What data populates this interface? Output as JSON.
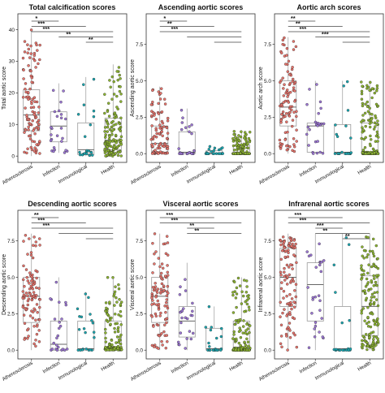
{
  "colors": {
    "Atherosclerosis": "#e8746c",
    "Infection": "#9d77d6",
    "Immunological": "#1aa6b0",
    "Health": "#8db531"
  },
  "chart_data": [
    {
      "type": "box",
      "title": "Total calcification scores",
      "ylabel": "Total aortic score",
      "ylim": [
        -2,
        45
      ],
      "yticks": [
        "0",
        "10",
        "20",
        "30",
        "40"
      ],
      "ytick_values": [
        0,
        10,
        20,
        30,
        40
      ],
      "categories": [
        "Atherosclerosis",
        "Infection",
        "Immunological",
        "Health"
      ],
      "boxes": [
        {
          "min": 0,
          "q1": 8,
          "median": 13,
          "q3": 21,
          "max": 40
        },
        {
          "min": 1,
          "q1": 4.5,
          "median": 9.5,
          "q3": 14,
          "max": 23
        },
        {
          "min": 0,
          "q1": 0.5,
          "median": 2,
          "q3": 10.5,
          "max": 25
        },
        {
          "min": 0,
          "q1": 2,
          "median": 5,
          "q3": 12,
          "max": 29
        }
      ],
      "point_counts": [
        110,
        25,
        22,
        140
      ],
      "comparisons": [
        {
          "from": 0,
          "to": 1,
          "label": "*"
        },
        {
          "from": 0,
          "to": 2,
          "label": "***"
        },
        {
          "from": 0,
          "to": 3,
          "label": "***"
        },
        {
          "from": 1,
          "to": 3,
          "label": "**"
        },
        {
          "from": 2,
          "to": 3,
          "label": "**"
        }
      ]
    },
    {
      "type": "box",
      "title": "Ascending aortic scores",
      "ylabel": "Ascending aortic score",
      "ylim": [
        -0.6,
        9.6
      ],
      "yticks": [
        "0.0",
        "2.5",
        "5.0",
        "7.5"
      ],
      "ytick_values": [
        0,
        2.5,
        5,
        7.5
      ],
      "categories": [
        "Atherosclerosis",
        "Infection",
        "Immunological",
        "Health"
      ],
      "boxes": [
        {
          "min": 0,
          "q1": 0.1,
          "median": 0.7,
          "q3": 1.9,
          "max": 4.6
        },
        {
          "min": 0,
          "q1": 0,
          "median": 0.1,
          "q3": 1.5,
          "max": 3.1
        },
        {
          "min": 0,
          "q1": 0,
          "median": 0,
          "q3": 0.2,
          "max": 0.5
        },
        {
          "min": 0,
          "q1": 0,
          "median": 0,
          "q3": 0.6,
          "max": 1.6
        }
      ],
      "point_counts": [
        95,
        25,
        22,
        140
      ],
      "comparisons": [
        {
          "from": 0,
          "to": 1,
          "label": "*"
        },
        {
          "from": 0,
          "to": 2,
          "label": "**"
        },
        {
          "from": 0,
          "to": 3,
          "label": "***"
        },
        {
          "from": 1,
          "to": 3,
          "label": ""
        },
        {
          "from": 2,
          "to": 3,
          "label": ""
        }
      ]
    },
    {
      "type": "box",
      "title": "Aortic arch scores",
      "ylabel": "Aortic arch score",
      "ylim": [
        -0.6,
        9.6
      ],
      "yticks": [
        "0.0",
        "2.5",
        "5.0",
        "7.5"
      ],
      "ytick_values": [
        0,
        2.5,
        5,
        7.5
      ],
      "categories": [
        "Atherosclerosis",
        "Infection",
        "Immunological",
        "Health"
      ],
      "boxes": [
        {
          "min": 0,
          "q1": 1.9,
          "median": 3.2,
          "q3": 5,
          "max": 8
        },
        {
          "min": 0,
          "q1": 0.1,
          "median": 1.9,
          "q3": 2.1,
          "max": 5
        },
        {
          "min": 0,
          "q1": 0,
          "median": 0.1,
          "q3": 2,
          "max": 5
        },
        {
          "min": 0,
          "q1": 0,
          "median": 0.1,
          "q3": 2.1,
          "max": 5
        }
      ],
      "point_counts": [
        100,
        25,
        22,
        140
      ],
      "comparisons": [
        {
          "from": 0,
          "to": 1,
          "label": "**"
        },
        {
          "from": 0,
          "to": 2,
          "label": "**"
        },
        {
          "from": 0,
          "to": 3,
          "label": "***"
        },
        {
          "from": 1,
          "to": 3,
          "label": "***"
        },
        {
          "from": 2,
          "to": 3,
          "label": ""
        }
      ]
    },
    {
      "type": "box",
      "title": "Descending aortic scores",
      "ylabel": "Descending aortic score",
      "ylim": [
        -0.6,
        9.6
      ],
      "yticks": [
        "0.0",
        "2.5",
        "5.0",
        "7.5"
      ],
      "ytick_values": [
        0,
        2.5,
        5,
        7.5
      ],
      "categories": [
        "Atherosclerosis",
        "Infection",
        "Immunological",
        "Health"
      ],
      "boxes": [
        {
          "min": 0,
          "q1": 1.9,
          "median": 3.7,
          "q3": 5,
          "max": 8
        },
        {
          "min": 0,
          "q1": 0,
          "median": 0.4,
          "q3": 2,
          "max": 5
        },
        {
          "min": 0,
          "q1": 0,
          "median": 0.1,
          "q3": 2,
          "max": 4
        },
        {
          "min": 0,
          "q1": 0.1,
          "median": 0.2,
          "q3": 2,
          "max": 5
        }
      ],
      "point_counts": [
        100,
        25,
        22,
        140
      ],
      "comparisons": [
        {
          "from": 0,
          "to": 1,
          "label": "**"
        },
        {
          "from": 0,
          "to": 2,
          "label": "***"
        },
        {
          "from": 0,
          "to": 3,
          "label": "***"
        },
        {
          "from": 1,
          "to": 3,
          "label": ""
        },
        {
          "from": 2,
          "to": 3,
          "label": ""
        }
      ]
    },
    {
      "type": "box",
      "title": "Visceral aortic scores",
      "ylabel": "Visceral aortic score",
      "ylim": [
        -0.6,
        9.6
      ],
      "yticks": [
        "0.0",
        "2.5",
        "5.0",
        "7.5"
      ],
      "ytick_values": [
        0,
        2.5,
        5,
        7.5
      ],
      "categories": [
        "Atherosclerosis",
        "Infection",
        "Immunological",
        "Health"
      ],
      "boxes": [
        {
          "min": 0,
          "q1": 1.9,
          "median": 3.7,
          "q3": 5,
          "max": 8
        },
        {
          "min": 0,
          "q1": 0.9,
          "median": 2,
          "q3": 3,
          "max": 6
        },
        {
          "min": 0,
          "q1": 0,
          "median": 0.1,
          "q3": 1.5,
          "max": 3
        },
        {
          "min": 0,
          "q1": 0,
          "median": 0.2,
          "q3": 2,
          "max": 5
        }
      ],
      "point_counts": [
        100,
        25,
        22,
        140
      ],
      "comparisons": [
        {
          "from": 0,
          "to": 2,
          "label": "***"
        },
        {
          "from": 0,
          "to": 3,
          "label": "***"
        },
        {
          "from": 1,
          "to": 2,
          "label": "**"
        },
        {
          "from": 1,
          "to": 3,
          "label": "**"
        }
      ]
    },
    {
      "type": "box",
      "title": "Infrarenal aortic scores",
      "ylabel": "Infrarenal aortic score",
      "ylim": [
        -0.6,
        9.6
      ],
      "yticks": [
        "0.0",
        "2.5",
        "5.0",
        "7.5"
      ],
      "ytick_values": [
        0,
        2.5,
        5,
        7.5
      ],
      "categories": [
        "Atherosclerosis",
        "Infection",
        "Immunological",
        "Health"
      ],
      "boxes": [
        {
          "min": 0,
          "q1": 3,
          "median": 5,
          "q3": 7,
          "max": 8
        },
        {
          "min": 0,
          "q1": 2,
          "median": 4.5,
          "q3": 6,
          "max": 8
        },
        {
          "min": 0,
          "q1": 0,
          "median": 0.1,
          "q3": 3,
          "max": 8
        },
        {
          "min": 0,
          "q1": 1,
          "median": 3,
          "q3": 5.1,
          "max": 8
        }
      ],
      "point_counts": [
        110,
        28,
        22,
        140
      ],
      "comparisons": [
        {
          "from": 0,
          "to": 2,
          "label": "***"
        },
        {
          "from": 0,
          "to": 3,
          "label": "***"
        },
        {
          "from": 1,
          "to": 2,
          "label": "***"
        },
        {
          "from": 1,
          "to": 3,
          "label": "**"
        },
        {
          "from": 2,
          "to": 3,
          "label": "**"
        }
      ]
    }
  ]
}
